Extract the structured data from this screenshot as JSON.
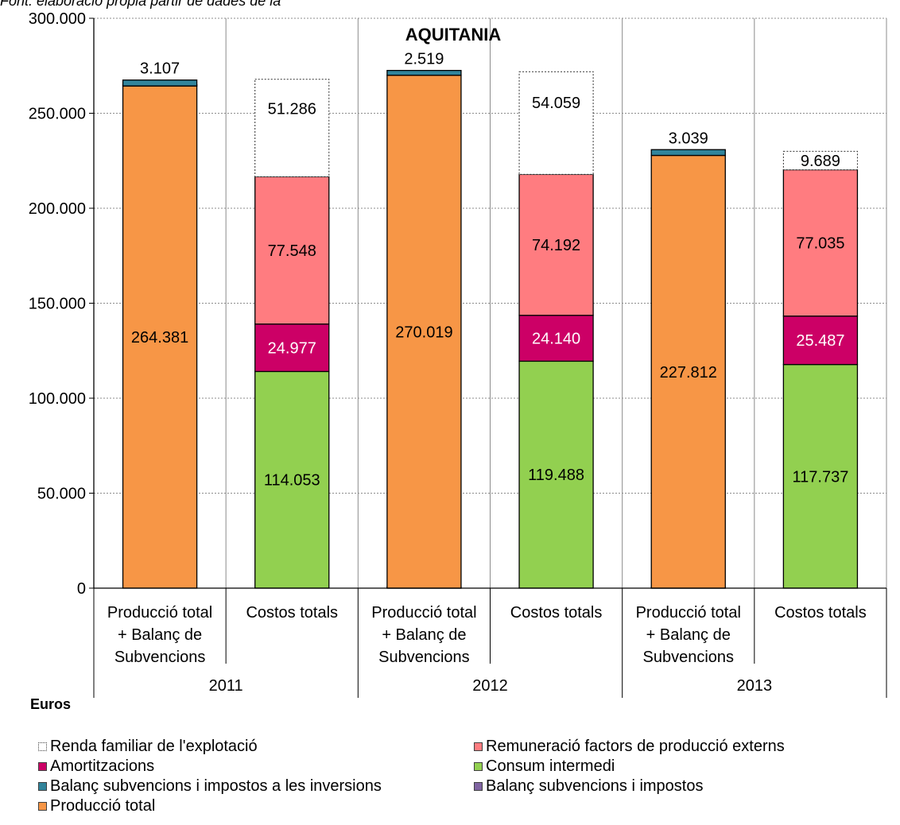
{
  "subtitle": "Font: elaboració pròpia partir de dades de la",
  "chart_data": {
    "type": "bar",
    "stacked": true,
    "title": "AQUITANIA",
    "ylabel": "Euros",
    "ylim": [
      0,
      300000
    ],
    "yticks": [
      "0",
      "50.000",
      "100.000",
      "150.000",
      "200.000",
      "250.000",
      "300.000"
    ],
    "grid": true,
    "legend_position": "bottom",
    "groups": [
      {
        "year": "2011",
        "bars": [
          {
            "label": "Producció total + Balanç de Subvencions",
            "label_lines": [
              "Producció total",
              "+ Balanç de",
              "Subvencions"
            ],
            "segments": [
              {
                "series": "Producció total",
                "value": 264381,
                "label": "264.381"
              },
              {
                "series": "Balanç subvencions i impostos",
                "value": 0,
                "label": ""
              },
              {
                "series": "Balanç subvencions i impostos a les inversions",
                "value": 3107,
                "label": "3.107"
              }
            ]
          },
          {
            "label": "Costos totals",
            "label_lines": [
              "Costos totals"
            ],
            "segments": [
              {
                "series": "Consum intermedi",
                "value": 114053,
                "label": "114.053"
              },
              {
                "series": "Amortitzacions",
                "value": 24977,
                "label": "24.977"
              },
              {
                "series": "Remuneració factors de producció externs",
                "value": 77548,
                "label": "77.548"
              },
              {
                "series": "Renda familiar de l'explotació",
                "value": 51286,
                "label": "51.286"
              }
            ]
          }
        ]
      },
      {
        "year": "2012",
        "bars": [
          {
            "label": "Producció total + Balanç de Subvencions",
            "label_lines": [
              "Producció total",
              "+ Balanç de",
              "Subvencions"
            ],
            "segments": [
              {
                "series": "Balanç subvencions i impostos",
                "value": 0,
                "label": ""
              },
              {
                "series": "Producció total",
                "value": 270019,
                "label": "270.019"
              },
              {
                "series": "Balanç subvencions i impostos a les inversions",
                "value": 2519,
                "label": "2.519"
              }
            ]
          },
          {
            "label": "Costos totals",
            "label_lines": [
              "Costos totals"
            ],
            "segments": [
              {
                "series": "Consum intermedi",
                "value": 119488,
                "label": "119.488"
              },
              {
                "series": "Amortitzacions",
                "value": 24140,
                "label": "24.140"
              },
              {
                "series": "Remuneració factors de producció externs",
                "value": 74192,
                "label": "74.192"
              },
              {
                "series": "Renda familiar de l'explotació",
                "value": 54059,
                "label": "54.059"
              }
            ]
          }
        ]
      },
      {
        "year": "2013",
        "bars": [
          {
            "label": "Producció total + Balanç de Subvencions",
            "label_lines": [
              "Producció total",
              "+ Balanç de",
              "Subvencions"
            ],
            "segments": [
              {
                "series": "Balanç subvencions i impostos",
                "value": 0,
                "label": ""
              },
              {
                "series": "Producció total",
                "value": 227812,
                "label": "227.812"
              },
              {
                "series": "Balanç subvencions i impostos a les inversions",
                "value": 3039,
                "label": "3.039"
              }
            ]
          },
          {
            "label": "Costos totals",
            "label_lines": [
              "Costos totals"
            ],
            "segments": [
              {
                "series": "Consum intermedi",
                "value": 117737,
                "label": "117.737"
              },
              {
                "series": "Amortitzacions",
                "value": 25487,
                "label": "25.487"
              },
              {
                "series": "Remuneració factors de producció externs",
                "value": 77035,
                "label": "77.035"
              },
              {
                "series": "Renda familiar de l'explotació",
                "value": 9689,
                "label": "9.689"
              }
            ]
          }
        ]
      }
    ],
    "series": [
      {
        "name": "Renda familiar de l'explotació",
        "color": "#ffffff",
        "dashed": true,
        "label_color": "#000000"
      },
      {
        "name": "Remuneració factors de producció externs",
        "color": "#ff7c80",
        "label_color": "#000000"
      },
      {
        "name": "Amortitzacions",
        "color": "#cc0066",
        "label_color": "#ffffff"
      },
      {
        "name": "Consum intermedi",
        "color": "#92d050",
        "label_color": "#000000"
      },
      {
        "name": "Balanç subvencions i impostos a les inversions",
        "color": "#31849b",
        "label_color": "#000000"
      },
      {
        "name": "Balanç subvencions i impostos",
        "color": "#8064a2",
        "label_color": "#000000"
      },
      {
        "name": "Producció total",
        "color": "#f79646",
        "label_color": "#000000"
      }
    ]
  }
}
